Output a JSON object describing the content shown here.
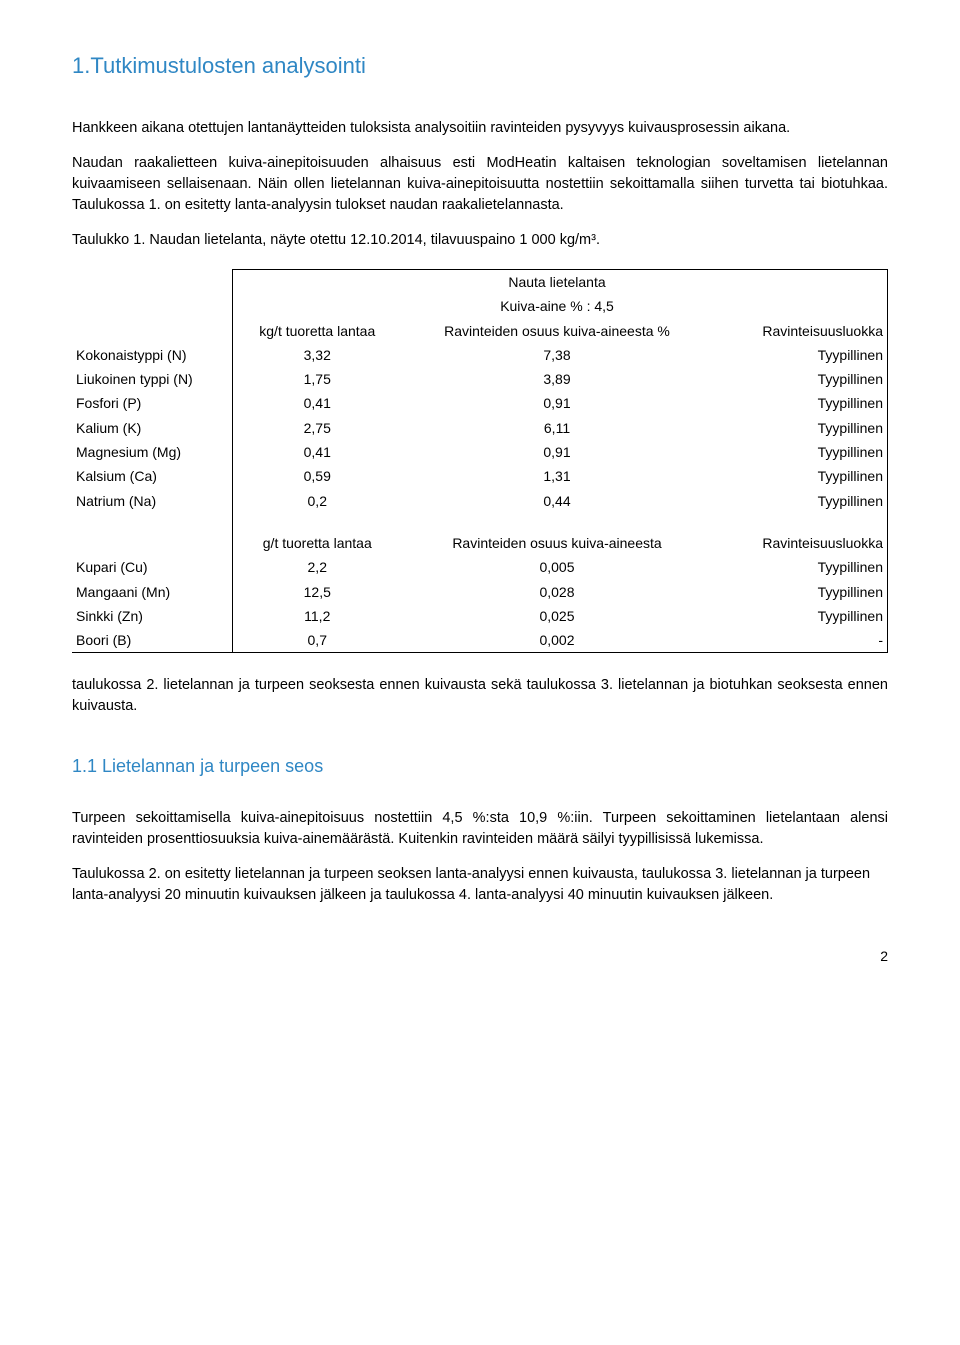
{
  "heading_main": "1.Tutkimustulosten analysointi",
  "para1": "Hankkeen aikana otettujen lantanäytteiden tuloksista analysoitiin ravinteiden pysyvyys kuivausprosessin aikana.",
  "para2": "Naudan raakalietteen kuiva-ainepitoisuuden alhaisuus esti ModHeatin kaltaisen teknologian soveltamisen lietelannan kuivaamiseen sellaisenaan. Näin ollen lietelannan kuiva-ainepitoisuutta nostettiin sekoittamalla siihen turvetta tai biotuhkaa. Taulukossa 1. on esitetty lanta-analyysin tulokset naudan raakalietelannasta.",
  "para3": "Taulukko 1. Naudan lietelanta, näyte otettu 12.10.2014, tilavuuspaino 1 000 kg/m³.",
  "table1": {
    "title": "Nauta lietelanta",
    "subtitle": "Kuiva-aine % : 4,5",
    "header_a": "kg/t tuoretta lantaa",
    "header_b": "Ravinteiden osuus kuiva-aineesta %",
    "header_c": "Ravinteisuusluokka",
    "rows1": [
      {
        "label": "Kokonaistyppi (N)",
        "a": "3,32",
        "b": "7,38",
        "c": "Tyypillinen"
      },
      {
        "label": "Liukoinen typpi (N)",
        "a": "1,75",
        "b": "3,89",
        "c": "Tyypillinen"
      },
      {
        "label": "Fosfori (P)",
        "a": "0,41",
        "b": "0,91",
        "c": "Tyypillinen"
      },
      {
        "label": "Kalium (K)",
        "a": "2,75",
        "b": "6,11",
        "c": "Tyypillinen"
      },
      {
        "label": "Magnesium (Mg)",
        "a": "0,41",
        "b": "0,91",
        "c": "Tyypillinen"
      },
      {
        "label": "Kalsium (Ca)",
        "a": "0,59",
        "b": "1,31",
        "c": "Tyypillinen"
      },
      {
        "label": "Natrium (Na)",
        "a": "0,2",
        "b": "0,44",
        "c": "Tyypillinen"
      }
    ],
    "header2_a": "g/t tuoretta lantaa",
    "header2_b": "Ravinteiden osuus kuiva-aineesta",
    "header2_c": "Ravinteisuusluokka",
    "rows2": [
      {
        "label": "Kupari (Cu)",
        "a": "2,2",
        "b": "0,005",
        "c": "Tyypillinen"
      },
      {
        "label": "Mangaani (Mn)",
        "a": "12,5",
        "b": "0,028",
        "c": "Tyypillinen"
      },
      {
        "label": "Sinkki (Zn)",
        "a": "11,2",
        "b": "0,025",
        "c": "Tyypillinen"
      },
      {
        "label": "Boori (B)",
        "a": "0,7",
        "b": "0,002",
        "c": "-"
      }
    ]
  },
  "para4": "taulukossa 2. lietelannan ja turpeen seoksesta ennen kuivausta sekä taulukossa 3. lietelannan ja biotuhkan seoksesta ennen kuivausta.",
  "heading_sub": "1.1 Lietelannan ja turpeen seos",
  "para5": "Turpeen sekoittamisella kuiva-ainepitoisuus nostettiin 4,5 %:sta 10,9 %:iin. Turpeen sekoittaminen lietelantaan alensi ravinteiden prosenttiosuuksia kuiva-ainemäärästä. Kuitenkin ravinteiden määrä säilyi tyypillisissä lukemissa.",
  "para6": "Taulukossa 2. on esitetty lietelannan ja turpeen seoksen lanta-analyysi ennen kuivausta, taulukossa 3. lietelannan ja turpeen lanta-analyysi 20 minuutin kuivauksen jälkeen ja taulukossa 4. lanta-analyysi 40 minuutin kuivauksen jälkeen.",
  "page_number": "2"
}
